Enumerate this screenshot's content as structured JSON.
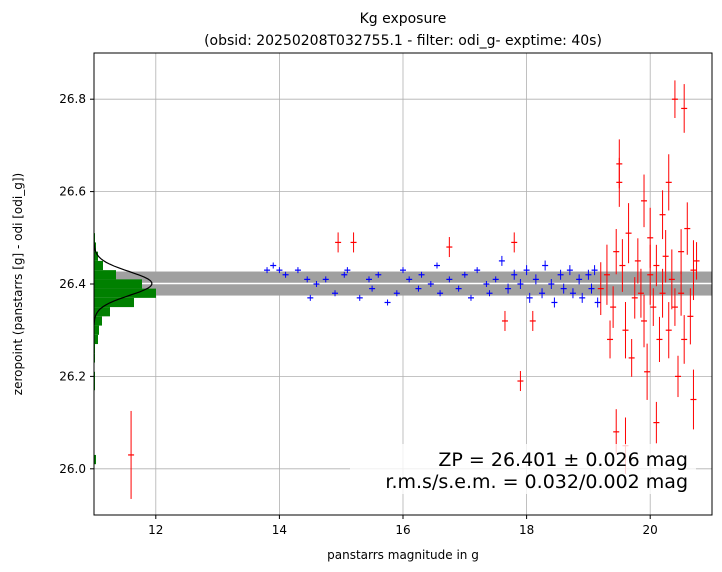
{
  "chart_data": {
    "type": "scatter",
    "title": "Kg exposure",
    "subtitle": "(obsid: 20250208T032755.1 - filter: odi_g- exptime: 40s)",
    "xlabel": "panstarrs magnitude in g",
    "ylabel": "zeropoint (panstarrs [g] - odi [odi_g])",
    "xlim": [
      11.0,
      21.0
    ],
    "ylim": [
      25.9,
      26.9
    ],
    "x_ticks": [
      "12",
      "14",
      "16",
      "18",
      "20"
    ],
    "y_ticks": [
      "26.0",
      "26.2",
      "26.4",
      "26.6",
      "26.8"
    ],
    "grid": true,
    "zp": 26.401,
    "zp_band": [
      26.375,
      26.427
    ],
    "annotations": [
      "ZP = 26.401 ± 0.026 mag",
      "r.m.s/s.e.m. = 0.032/0.002 mag"
    ],
    "colors": {
      "used": "#0000ff",
      "rejected": "#ff0000",
      "histogram": "#008000",
      "band": "#a0a0a0",
      "fit": "#000000"
    },
    "series": [
      {
        "color": "#0000ff",
        "points": [
          [
            13.8,
            26.43
          ],
          [
            13.9,
            26.44
          ],
          [
            14.0,
            26.43
          ],
          [
            14.1,
            26.42
          ],
          [
            14.3,
            26.43
          ],
          [
            14.45,
            26.41
          ],
          [
            14.5,
            26.37
          ],
          [
            14.6,
            26.4
          ],
          [
            14.75,
            26.41
          ],
          [
            14.9,
            26.38
          ],
          [
            15.05,
            26.42
          ],
          [
            15.1,
            26.43
          ],
          [
            15.3,
            26.37
          ],
          [
            15.45,
            26.41
          ],
          [
            15.5,
            26.39
          ],
          [
            15.6,
            26.42
          ],
          [
            15.75,
            26.36
          ],
          [
            15.9,
            26.38
          ],
          [
            16.0,
            26.43
          ],
          [
            16.1,
            26.41
          ],
          [
            16.25,
            26.39
          ],
          [
            16.3,
            26.42
          ],
          [
            16.45,
            26.4
          ],
          [
            16.55,
            26.44
          ],
          [
            16.6,
            26.38
          ],
          [
            16.75,
            26.41
          ],
          [
            16.9,
            26.39
          ],
          [
            17.0,
            26.42
          ],
          [
            17.1,
            26.37
          ],
          [
            17.2,
            26.43
          ],
          [
            17.35,
            26.4
          ],
          [
            17.4,
            26.38
          ],
          [
            17.5,
            26.41
          ],
          [
            17.6,
            26.45
          ],
          [
            17.7,
            26.39
          ],
          [
            17.8,
            26.42
          ],
          [
            17.9,
            26.4
          ],
          [
            18.0,
            26.43
          ],
          [
            18.05,
            26.37
          ],
          [
            18.15,
            26.41
          ],
          [
            18.25,
            26.38
          ],
          [
            18.3,
            26.44
          ],
          [
            18.4,
            26.4
          ],
          [
            18.45,
            26.36
          ],
          [
            18.55,
            26.42
          ],
          [
            18.6,
            26.39
          ],
          [
            18.7,
            26.43
          ],
          [
            18.75,
            26.38
          ],
          [
            18.85,
            26.41
          ],
          [
            18.9,
            26.37
          ],
          [
            19.0,
            26.42
          ],
          [
            19.05,
            26.39
          ],
          [
            19.1,
            26.43
          ],
          [
            19.15,
            26.36
          ]
        ]
      },
      {
        "color": "#ff0000",
        "points": [
          [
            11.6,
            26.03
          ],
          [
            14.95,
            26.49
          ],
          [
            15.2,
            26.49
          ],
          [
            16.75,
            26.48
          ],
          [
            17.65,
            26.32
          ],
          [
            17.8,
            26.49
          ],
          [
            17.9,
            26.19
          ],
          [
            18.1,
            26.32
          ],
          [
            19.2,
            26.39
          ],
          [
            19.3,
            26.42
          ],
          [
            19.35,
            26.28
          ],
          [
            19.4,
            26.35
          ],
          [
            19.45,
            26.08
          ],
          [
            19.45,
            26.47
          ],
          [
            19.5,
            26.62
          ],
          [
            19.5,
            26.66
          ],
          [
            19.55,
            26.44
          ],
          [
            19.6,
            26.3
          ],
          [
            19.6,
            26.05
          ],
          [
            19.65,
            26.51
          ],
          [
            19.7,
            26.24
          ],
          [
            19.75,
            26.37
          ],
          [
            19.8,
            26.45
          ],
          [
            19.85,
            26.38
          ],
          [
            19.9,
            26.58
          ],
          [
            19.9,
            26.32
          ],
          [
            19.95,
            26.21
          ],
          [
            20.0,
            26.42
          ],
          [
            20.0,
            26.5
          ],
          [
            20.05,
            26.35
          ],
          [
            20.1,
            26.1
          ],
          [
            20.1,
            26.44
          ],
          [
            20.15,
            26.28
          ],
          [
            20.2,
            26.38
          ],
          [
            20.2,
            26.55
          ],
          [
            20.25,
            26.46
          ],
          [
            20.3,
            26.3
          ],
          [
            20.3,
            26.62
          ],
          [
            20.35,
            26.41
          ],
          [
            20.4,
            26.8
          ],
          [
            20.4,
            26.35
          ],
          [
            20.45,
            26.2
          ],
          [
            20.5,
            26.47
          ],
          [
            20.5,
            26.38
          ],
          [
            20.55,
            26.78
          ],
          [
            20.55,
            26.28
          ],
          [
            20.6,
            26.52
          ],
          [
            20.65,
            26.33
          ],
          [
            20.7,
            26.43
          ],
          [
            20.7,
            26.15
          ],
          [
            20.75,
            26.45
          ]
        ]
      }
    ],
    "histogram": {
      "bins": [
        26.02,
        26.04,
        26.06,
        26.08,
        26.1,
        26.12,
        26.14,
        26.16,
        26.18,
        26.2,
        26.22,
        26.24,
        26.26,
        26.28,
        26.3,
        26.32,
        26.34,
        26.36,
        26.38,
        26.4,
        26.42,
        26.44,
        26.46,
        26.48,
        26.5
      ],
      "counts": [
        2,
        0,
        0,
        0,
        0,
        0,
        0,
        0,
        1,
        1,
        0,
        1,
        1,
        4,
        5,
        8,
        16,
        40,
        62,
        48,
        22,
        9,
        4,
        2,
        1
      ]
    }
  }
}
